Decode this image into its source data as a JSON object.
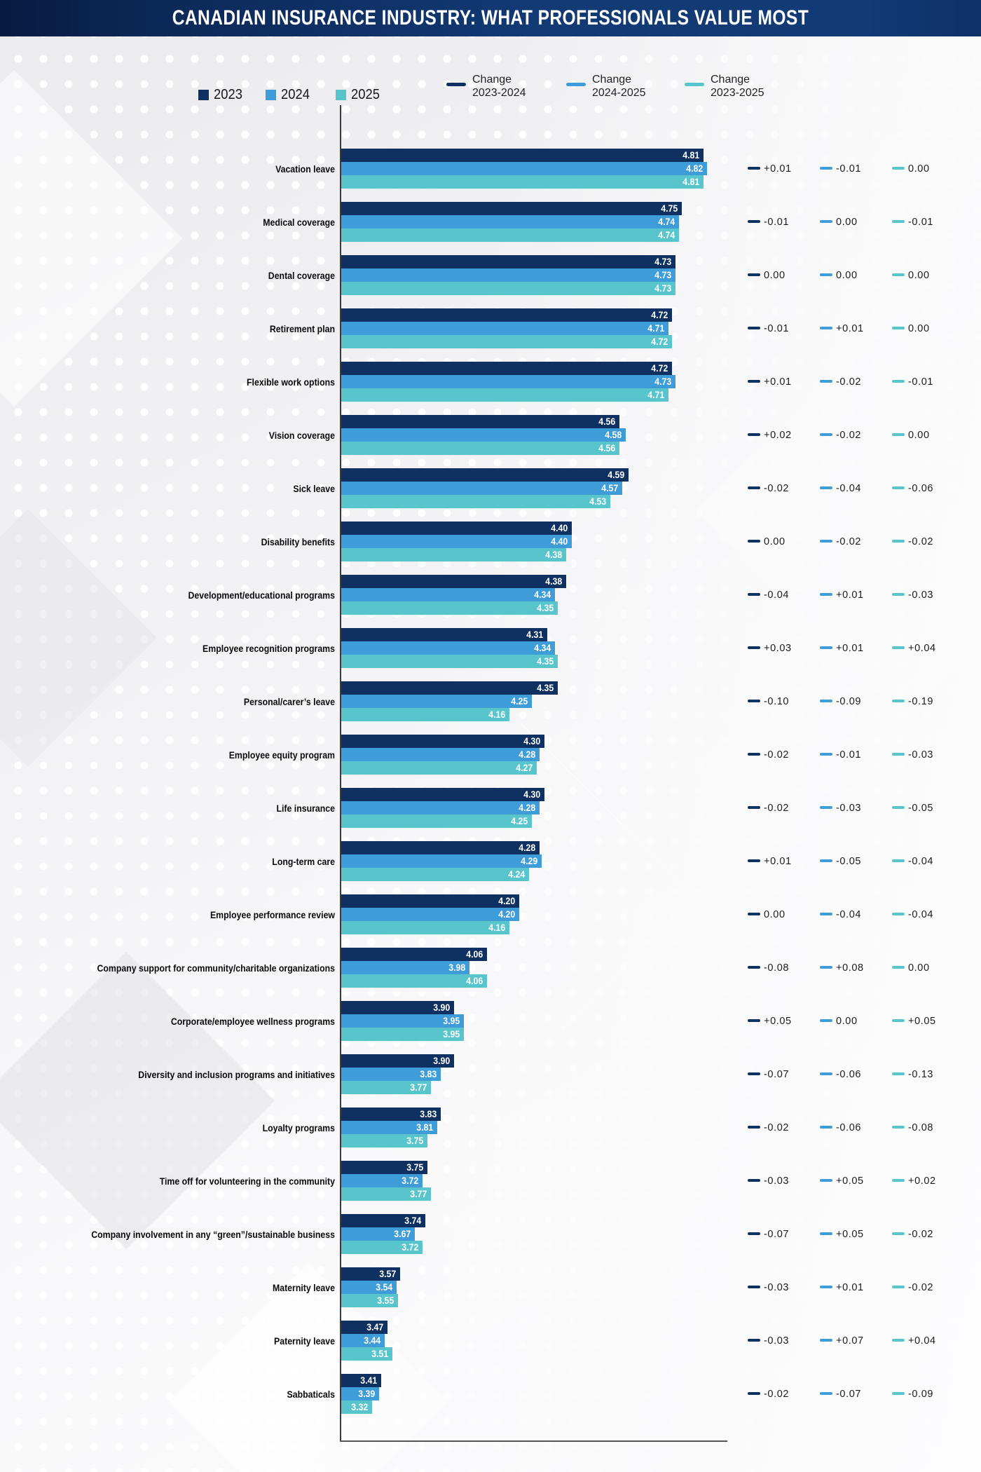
{
  "title": "CANADIAN INSURANCE INDUSTRY: WHAT PROFESSIONALS VALUE MOST",
  "colors": {
    "y2023": "#0E3161",
    "y2024": "#3E9CD9",
    "y2025": "#58C5CC",
    "titlebar_left": "#071A40",
    "titlebar_right": "#123A75",
    "axis": "#3A3A3D",
    "change_text": "#1B1B1E",
    "background": "#F1F1F3"
  },
  "legend": {
    "years": [
      {
        "label": "2023",
        "color": "#0E3161"
      },
      {
        "label": "2024",
        "color": "#3E9CD9"
      },
      {
        "label": "2025",
        "color": "#58C5CC"
      }
    ],
    "changes": [
      {
        "label_line1": "Change",
        "label_line2": "2023-2024",
        "color": "#0E3161"
      },
      {
        "label_line1": "Change",
        "label_line2": "2024-2025",
        "color": "#3E9CD9"
      },
      {
        "label_line1": "Change",
        "label_line2": "2023-2025",
        "color": "#58C5CC"
      }
    ]
  },
  "chart_data": {
    "type": "bar",
    "orientation": "horizontal",
    "value_format": "2dp",
    "grid": false,
    "legend_position": "top",
    "categories": [
      "Vacation leave",
      "Medical coverage",
      "Dental coverage",
      "Retirement plan",
      "Flexible work options",
      "Vision coverage",
      "Sick leave",
      "Disability benefits",
      "Development/educational programs",
      "Employee recognition programs",
      "Personal/carer’s leave",
      "Employee equity program",
      "Life insurance",
      "Long-term care",
      "Employee performance review",
      "Company support for community/charitable organizations",
      "Corporate/employee wellness programs",
      "Diversity and inclusion programs and initiatives",
      "Loyalty programs",
      "Time off for volunteering in the community",
      "Company involvement in any “green”/sustainable business",
      "Maternity leave",
      "Paternity leave",
      "Sabbaticals"
    ],
    "series": [
      {
        "name": "2023",
        "values": [
          4.81,
          4.75,
          4.73,
          4.72,
          4.72,
          4.56,
          4.59,
          4.4,
          4.38,
          4.31,
          4.35,
          4.3,
          4.3,
          4.28,
          4.2,
          4.06,
          3.9,
          3.9,
          3.83,
          3.75,
          3.74,
          3.57,
          3.47,
          3.41
        ]
      },
      {
        "name": "2024",
        "values": [
          4.82,
          4.74,
          4.73,
          4.71,
          4.73,
          4.58,
          4.57,
          4.4,
          4.34,
          4.34,
          4.25,
          4.28,
          4.28,
          4.29,
          4.2,
          3.98,
          3.95,
          3.83,
          3.81,
          3.72,
          3.67,
          3.54,
          3.44,
          3.39
        ]
      },
      {
        "name": "2025",
        "values": [
          4.81,
          4.74,
          4.73,
          4.72,
          4.71,
          4.56,
          4.53,
          4.38,
          4.35,
          4.35,
          4.16,
          4.27,
          4.25,
          4.24,
          4.16,
          4.06,
          3.95,
          3.77,
          3.75,
          3.77,
          3.72,
          3.55,
          3.51,
          3.32
        ]
      }
    ],
    "changes": {
      "2023-2024": [
        "+0.01",
        "-0.01",
        "0.00",
        "-0.01",
        "+0.01",
        "+0.02",
        "-0.02",
        "0.00",
        "-0.04",
        "+0.03",
        "-0.10",
        "-0.02",
        "-0.02",
        "+0.01",
        "0.00",
        "-0.08",
        "+0.05",
        "-0.07",
        "-0.02",
        "-0.03",
        "-0.07",
        "-0.03",
        "-0.03",
        "-0.02"
      ],
      "2024-2025": [
        "-0.01",
        "0.00",
        "0.00",
        "+0.01",
        "-0.02",
        "-0.02",
        "-0.04",
        "-0.02",
        "+0.01",
        "+0.01",
        "-0.09",
        "-0.01",
        "-0.03",
        "-0.05",
        "-0.04",
        "+0.08",
        "0.00",
        "-0.06",
        "-0.06",
        "+0.05",
        "+0.05",
        "+0.01",
        "+0.07",
        "-0.07"
      ],
      "2023-2025": [
        "0.00",
        "-0.01",
        "0.00",
        "0.00",
        "-0.01",
        "0.00",
        "-0.06",
        "-0.02",
        "-0.03",
        "+0.04",
        "-0.19",
        "-0.03",
        "-0.05",
        "-0.04",
        "-0.04",
        "0.00",
        "+0.05",
        "-0.13",
        "-0.08",
        "+0.02",
        "-0.02",
        "-0.02",
        "+0.04",
        "-0.09"
      ]
    }
  }
}
